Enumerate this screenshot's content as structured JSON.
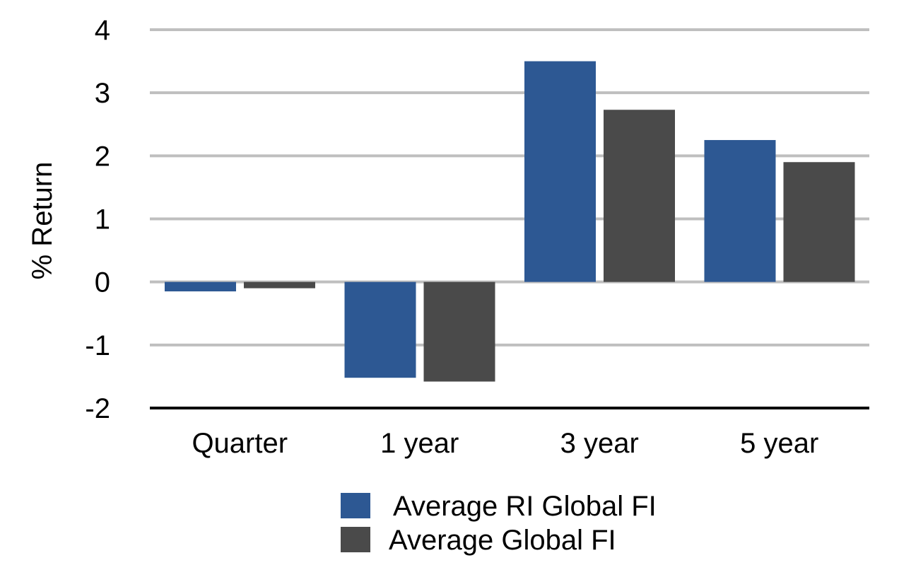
{
  "chart_data": {
    "type": "bar",
    "title": "",
    "xlabel": "",
    "ylabel": "% Return",
    "categories": [
      "Quarter",
      "1 year",
      "3 year",
      "5 year"
    ],
    "series": [
      {
        "name": "Average RI Global FI",
        "color": "#2d5893",
        "values": [
          -0.15,
          -1.52,
          3.5,
          2.25
        ]
      },
      {
        "name": "Average Global FI",
        "color": "#4a4a4a",
        "values": [
          -0.1,
          -1.58,
          2.73,
          1.9
        ]
      }
    ],
    "ylim": [
      -2,
      4
    ],
    "yticks": [
      4,
      3,
      2,
      1,
      0,
      -1,
      -2
    ],
    "ytick_labels": [
      "4",
      "3",
      "2",
      "1",
      "0",
      "-1",
      "-2"
    ],
    "grid": true,
    "grid_color": "#bfbfbf",
    "axis_color": "#000000",
    "legend_position": "bottom"
  }
}
